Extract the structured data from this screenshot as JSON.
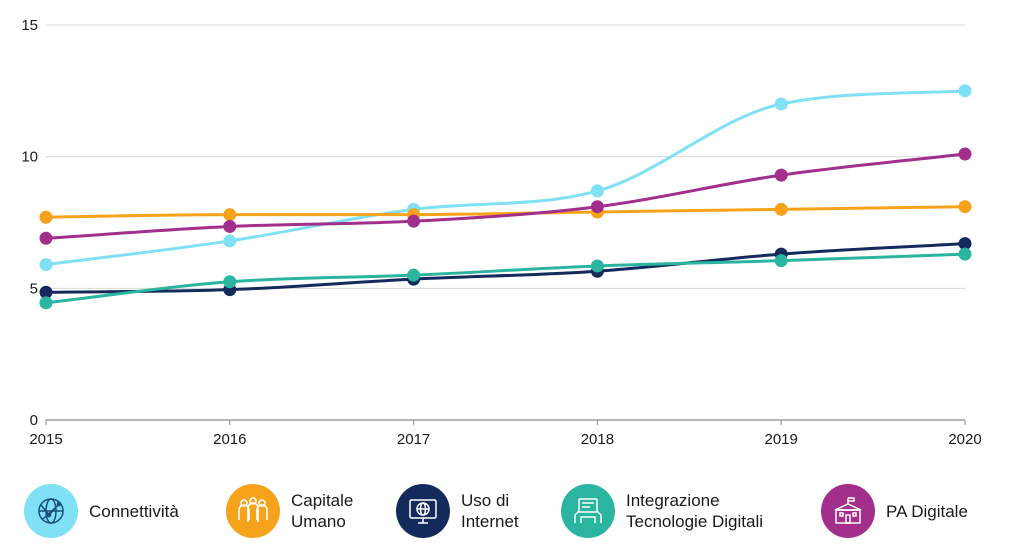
{
  "chart_data": {
    "type": "line",
    "x": [
      "2015",
      "2016",
      "2017",
      "2018",
      "2019",
      "2020"
    ],
    "ylim": [
      0,
      15
    ],
    "yticks": [
      "0",
      "5",
      "10",
      "15"
    ],
    "grid": true,
    "legend_position": "bottom",
    "series": [
      {
        "name": "Connettività",
        "color": "#80e0f5",
        "icon": "globe-network-icon",
        "values": [
          5.9,
          6.8,
          8.0,
          8.7,
          12.0,
          12.5
        ]
      },
      {
        "name": "Capitale Umano",
        "color": "#f7a21b",
        "icon": "people-group-icon",
        "values": [
          7.7,
          7.8,
          7.8,
          7.9,
          8.0,
          8.1
        ]
      },
      {
        "name": "Uso di Internet",
        "color": "#152a5c",
        "icon": "computer-globe-icon",
        "values": [
          4.85,
          4.95,
          5.35,
          5.65,
          6.3,
          6.7
        ]
      },
      {
        "name": "Integrazione Tecnologie Digitali",
        "color": "#2bb5a0",
        "icon": "tech-integration-icon",
        "values": [
          4.45,
          5.25,
          5.5,
          5.85,
          6.05,
          6.3
        ]
      },
      {
        "name": "PA Digitale",
        "color": "#a22f8c",
        "icon": "public-building-icon",
        "values": [
          6.9,
          7.35,
          7.55,
          8.1,
          9.3,
          10.1
        ]
      }
    ]
  },
  "legend": {
    "items": [
      {
        "line1": "Connettività",
        "line2": ""
      },
      {
        "line1": "Capitale",
        "line2": "Umano"
      },
      {
        "line1": "Uso di",
        "line2": "Internet"
      },
      {
        "line1": "Integrazione",
        "line2": "Tecnologie Digitali"
      },
      {
        "line1": "PA Digitale",
        "line2": ""
      }
    ]
  }
}
